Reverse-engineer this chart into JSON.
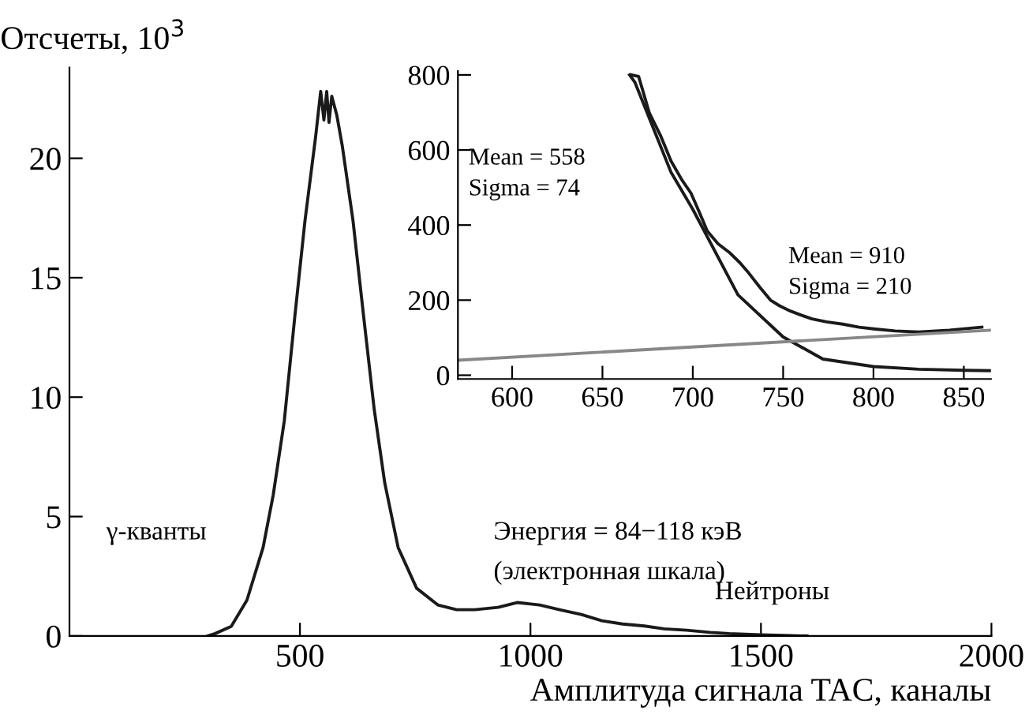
{
  "chart_data": [
    {
      "type": "line",
      "ylabel": "Отсчеты, 10$^{3}$",
      "xlabel": "Амплитуда сигнала TAC, каналы",
      "xlim": [
        0,
        2000
      ],
      "ylim": [
        0,
        23.8
      ],
      "xticks": [
        500,
        1000,
        1500,
        2000
      ],
      "yticks": [
        0,
        5,
        10,
        15,
        20
      ],
      "grid": false,
      "legend": false,
      "series": [
        {
          "color": "#1a1a1a",
          "x": [
            300,
            316,
            351,
            385,
            420,
            442,
            466,
            489,
            511,
            534,
            545,
            552,
            558,
            563,
            569,
            580,
            592,
            615,
            638,
            661,
            684,
            713,
            753,
            799,
            840,
            879,
            930,
            971,
            1020,
            1063,
            1110,
            1155,
            1200,
            1247,
            1290,
            1339,
            1390,
            1431,
            1500,
            1550,
            1600
          ],
          "values": [
            0,
            0.1,
            0.4,
            1.5,
            3.7,
            5.9,
            9.0,
            13.4,
            17.4,
            20.9,
            22.8,
            21.6,
            22.8,
            21.5,
            22.6,
            21.8,
            20.5,
            17.4,
            13.4,
            9.5,
            6.4,
            3.7,
            2.0,
            1.3,
            1.1,
            1.1,
            1.2,
            1.4,
            1.3,
            1.1,
            0.9,
            0.64,
            0.5,
            0.42,
            0.3,
            0.24,
            0.15,
            0.1,
            0.05,
            0.02,
            0
          ]
        }
      ],
      "annotations": [
        "γ-кванты",
        "Энергия = 84−118 кэВ",
        "(электронная шкала)",
        "Нейтроны"
      ]
    },
    {
      "type": "line",
      "xlim": [
        570,
        865
      ],
      "ylim": [
        -10,
        810
      ],
      "xticks": [
        600,
        650,
        700,
        750,
        800,
        850
      ],
      "yticks": [
        0,
        200,
        400,
        600,
        800
      ],
      "grid": false,
      "legend": false,
      "series": [
        {
          "color": "#1a1a1a",
          "x": [
            666,
            670,
            676,
            682,
            688,
            694,
            699,
            704,
            708,
            714,
            720,
            726,
            731,
            737,
            743,
            748,
            754,
            760,
            766,
            774,
            783,
            792,
            801,
            812,
            825,
            842,
            860
          ],
          "values": [
            800,
            796,
            698,
            640,
            570,
            520,
            485,
            430,
            384,
            350,
            328,
            300,
            272,
            235,
            200,
            185,
            171,
            160,
            150,
            142,
            136,
            128,
            123,
            118,
            115,
            120,
            128
          ]
        },
        {
          "color": "#1a1a1a",
          "x": [
            665,
            668,
            688,
            700,
            725,
            750,
            772,
            800,
            825,
            850,
            865
          ],
          "values": [
            800,
            780,
            540,
            442,
            214,
            102,
            43,
            23,
            16,
            13,
            12
          ]
        },
        {
          "color": "#888888",
          "x": [
            570,
            865
          ],
          "values": [
            40,
            120
          ]
        }
      ],
      "annotations": [
        "Mean = 558",
        "Sigma = 74",
        "Mean = 910",
        "Sigma = 210"
      ]
    }
  ]
}
